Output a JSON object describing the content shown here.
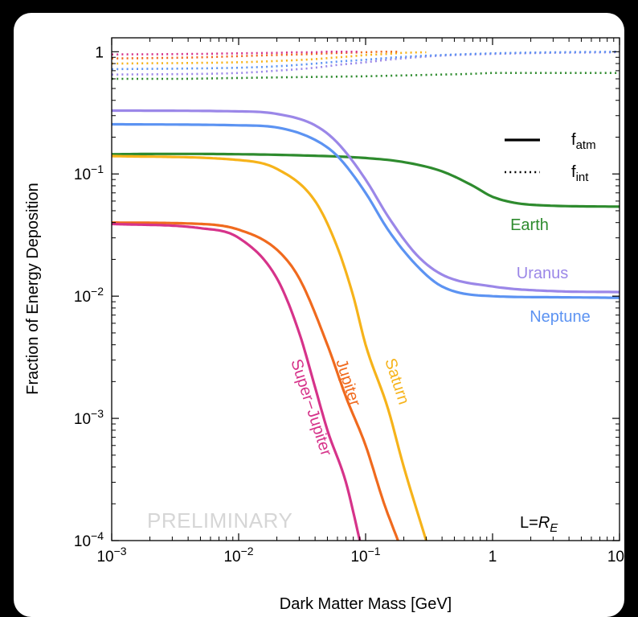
{
  "chart_data": {
    "type": "line",
    "xlabel": "Dark Matter Mass [GeV]",
    "ylabel": "Fraction of Energy Deposition",
    "xscale": "log",
    "yscale": "log",
    "xlim": [
      0.001,
      10
    ],
    "ylim": [
      0.0001,
      1.3
    ],
    "x_ticks": [
      {
        "value": 0.001,
        "base": "10",
        "exp": "−3"
      },
      {
        "value": 0.01,
        "base": "10",
        "exp": "−2"
      },
      {
        "value": 0.1,
        "base": "10",
        "exp": "−1"
      },
      {
        "value": 1,
        "base": "1",
        "exp": ""
      },
      {
        "value": 10,
        "base": "10",
        "exp": ""
      }
    ],
    "y_ticks": [
      {
        "value": 1,
        "base": "1",
        "exp": ""
      },
      {
        "value": 0.1,
        "base": "10",
        "exp": "−1"
      },
      {
        "value": 0.01,
        "base": "10",
        "exp": "−2"
      },
      {
        "value": 0.001,
        "base": "10",
        "exp": "−3"
      },
      {
        "value": 0.0001,
        "base": "10",
        "exp": "−4"
      }
    ],
    "legend": {
      "placement": "top-right",
      "entries": [
        {
          "style": "solid",
          "base": "f",
          "sub": "atm"
        },
        {
          "style": "dotted",
          "base": "f",
          "sub": "int"
        }
      ]
    },
    "annotation": {
      "prefix": "L=",
      "italic": "R",
      "sub": "E"
    },
    "watermark": "PRELIMINARY",
    "series": [
      {
        "name": "Earth",
        "color": "#2e8b2e",
        "x": [
          0.001,
          0.003,
          0.01,
          0.03,
          0.1,
          0.2,
          0.4,
          0.7,
          1,
          2,
          10
        ],
        "f_atm": [
          0.145,
          0.146,
          0.145,
          0.142,
          0.135,
          0.125,
          0.105,
          0.08,
          0.065,
          0.056,
          0.054
        ],
        "f_int": [
          0.6,
          0.6,
          0.61,
          0.62,
          0.63,
          0.64,
          0.65,
          0.66,
          0.67,
          0.67,
          0.67
        ]
      },
      {
        "name": "Uranus",
        "color": "#9b87e8",
        "x": [
          0.001,
          0.01,
          0.02,
          0.04,
          0.06,
          0.1,
          0.15,
          0.25,
          0.4,
          1,
          3,
          10
        ],
        "f_atm": [
          0.33,
          0.325,
          0.31,
          0.25,
          0.18,
          0.09,
          0.045,
          0.022,
          0.015,
          0.012,
          0.011,
          0.0108
        ],
        "f_int": [
          0.65,
          0.67,
          0.7,
          0.74,
          0.78,
          0.82,
          0.86,
          0.9,
          0.93,
          0.96,
          0.98,
          0.99
        ]
      },
      {
        "name": "Neptune",
        "color": "#5c93f2",
        "x": [
          0.001,
          0.01,
          0.02,
          0.04,
          0.06,
          0.1,
          0.15,
          0.25,
          0.4,
          1,
          3,
          10
        ],
        "f_atm": [
          0.255,
          0.25,
          0.24,
          0.19,
          0.14,
          0.07,
          0.035,
          0.018,
          0.012,
          0.01,
          0.0098,
          0.0097
        ],
        "f_int": [
          0.72,
          0.74,
          0.76,
          0.8,
          0.83,
          0.86,
          0.89,
          0.92,
          0.94,
          0.97,
          0.99,
          1.0
        ]
      },
      {
        "name": "Saturn",
        "color": "#f6b31a",
        "x": [
          0.001,
          0.01,
          0.02,
          0.04,
          0.06,
          0.08,
          0.1,
          0.15,
          0.2,
          0.3
        ],
        "f_atm": [
          0.14,
          0.13,
          0.11,
          0.06,
          0.025,
          0.01,
          0.004,
          0.0012,
          0.0004,
          0.0001
        ],
        "f_int": [
          0.8,
          0.82,
          0.84,
          0.87,
          0.9,
          0.92,
          0.94,
          0.96,
          0.98,
          0.99
        ]
      },
      {
        "name": "Jupiter",
        "color": "#f06a1e",
        "x": [
          0.001,
          0.005,
          0.01,
          0.02,
          0.03,
          0.05,
          0.07,
          0.1,
          0.14,
          0.18
        ],
        "f_atm": [
          0.04,
          0.039,
          0.035,
          0.024,
          0.014,
          0.004,
          0.0015,
          0.0006,
          0.0002,
          0.0001
        ],
        "f_int": [
          0.88,
          0.9,
          0.92,
          0.94,
          0.95,
          0.97,
          0.98,
          0.99,
          1.0,
          1.0
        ]
      },
      {
        "name": "Super−Jupiter",
        "color": "#d6338a",
        "x": [
          0.001,
          0.005,
          0.01,
          0.02,
          0.03,
          0.04,
          0.05,
          0.07,
          0.09
        ],
        "f_atm": [
          0.039,
          0.036,
          0.03,
          0.014,
          0.005,
          0.0018,
          0.0008,
          0.0003,
          0.0001
        ],
        "f_int": [
          0.95,
          0.96,
          0.97,
          0.98,
          0.99,
          0.99,
          1.0,
          1.0,
          1.0
        ]
      }
    ]
  }
}
